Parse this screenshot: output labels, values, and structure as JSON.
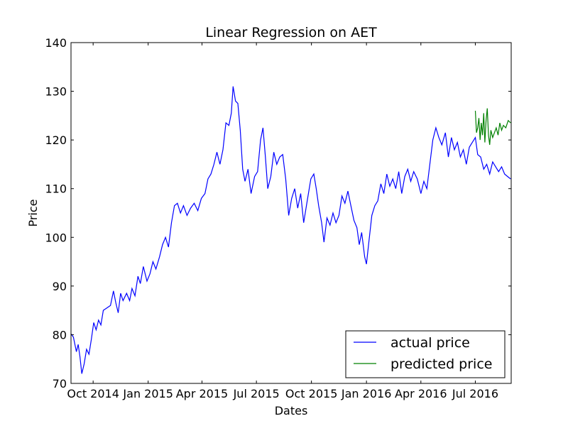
{
  "chart_data": {
    "type": "line",
    "title": "Linear Regression on AET",
    "xlabel": "Dates",
    "ylabel": "Price",
    "ylim": [
      70,
      140
    ],
    "xlim": [
      "2014-08-25",
      "2016-08-30"
    ],
    "yticks": [
      70,
      80,
      90,
      100,
      110,
      120,
      130,
      140
    ],
    "xticks": [
      {
        "date": "2014-10-01",
        "label": "Oct 2014"
      },
      {
        "date": "2015-01-01",
        "label": "Jan 2015"
      },
      {
        "date": "2015-04-01",
        "label": "Apr 2015"
      },
      {
        "date": "2015-07-01",
        "label": "Jul 2015"
      },
      {
        "date": "2015-10-01",
        "label": "Oct 2015"
      },
      {
        "date": "2016-01-01",
        "label": "Jan 2016"
      },
      {
        "date": "2016-04-01",
        "label": "Apr 2016"
      },
      {
        "date": "2016-07-01",
        "label": "Jul 2016"
      }
    ],
    "legend_position": "lower-right",
    "grid": false,
    "series": [
      {
        "name": "actual price",
        "color": "#0000ff",
        "points": [
          [
            "2014-08-25",
            80.2
          ],
          [
            "2014-08-29",
            79.5
          ],
          [
            "2014-09-03",
            76.5
          ],
          [
            "2014-09-06",
            78.0
          ],
          [
            "2014-09-09",
            75.5
          ],
          [
            "2014-09-12",
            72.0
          ],
          [
            "2014-09-16",
            74.0
          ],
          [
            "2014-09-20",
            77.0
          ],
          [
            "2014-09-24",
            76.0
          ],
          [
            "2014-09-28",
            79.0
          ],
          [
            "2014-10-02",
            82.5
          ],
          [
            "2014-10-06",
            81.0
          ],
          [
            "2014-10-10",
            83.0
          ],
          [
            "2014-10-14",
            82.0
          ],
          [
            "2014-10-18",
            85.0
          ],
          [
            "2014-10-24",
            85.5
          ],
          [
            "2014-10-30",
            86.0
          ],
          [
            "2014-11-04",
            89.0
          ],
          [
            "2014-11-08",
            86.5
          ],
          [
            "2014-11-12",
            84.5
          ],
          [
            "2014-11-16",
            88.5
          ],
          [
            "2014-11-20",
            87.0
          ],
          [
            "2014-11-26",
            88.5
          ],
          [
            "2014-12-01",
            87.0
          ],
          [
            "2014-12-05",
            89.5
          ],
          [
            "2014-12-10",
            88.0
          ],
          [
            "2014-12-15",
            92.0
          ],
          [
            "2014-12-19",
            90.5
          ],
          [
            "2014-12-24",
            94.0
          ],
          [
            "2014-12-30",
            91.0
          ],
          [
            "2015-01-04",
            92.5
          ],
          [
            "2015-01-09",
            95.0
          ],
          [
            "2015-01-14",
            93.5
          ],
          [
            "2015-01-20",
            96.0
          ],
          [
            "2015-01-25",
            98.5
          ],
          [
            "2015-01-30",
            100.0
          ],
          [
            "2015-02-04",
            98.0
          ],
          [
            "2015-02-09",
            103.0
          ],
          [
            "2015-02-14",
            106.5
          ],
          [
            "2015-02-19",
            107.0
          ],
          [
            "2015-02-24",
            105.0
          ],
          [
            "2015-03-01",
            106.5
          ],
          [
            "2015-03-07",
            104.5
          ],
          [
            "2015-03-13",
            106.0
          ],
          [
            "2015-03-19",
            107.0
          ],
          [
            "2015-03-25",
            105.5
          ],
          [
            "2015-03-31",
            108.0
          ],
          [
            "2015-04-06",
            109.0
          ],
          [
            "2015-04-11",
            112.0
          ],
          [
            "2015-04-16",
            113.0
          ],
          [
            "2015-04-21",
            115.0
          ],
          [
            "2015-04-26",
            117.5
          ],
          [
            "2015-05-01",
            115.0
          ],
          [
            "2015-05-06",
            118.0
          ],
          [
            "2015-05-11",
            123.5
          ],
          [
            "2015-05-16",
            123.0
          ],
          [
            "2015-05-20",
            125.5
          ],
          [
            "2015-05-23",
            131.0
          ],
          [
            "2015-05-27",
            128.0
          ],
          [
            "2015-05-31",
            127.5
          ],
          [
            "2015-06-04",
            122.0
          ],
          [
            "2015-06-08",
            114.0
          ],
          [
            "2015-06-12",
            111.5
          ],
          [
            "2015-06-17",
            114.0
          ],
          [
            "2015-06-22",
            109.0
          ],
          [
            "2015-06-28",
            112.5
          ],
          [
            "2015-07-03",
            113.5
          ],
          [
            "2015-07-08",
            120.0
          ],
          [
            "2015-07-12",
            122.5
          ],
          [
            "2015-07-16",
            116.5
          ],
          [
            "2015-07-20",
            110.0
          ],
          [
            "2015-07-25",
            112.5
          ],
          [
            "2015-07-30",
            117.5
          ],
          [
            "2015-08-04",
            115.0
          ],
          [
            "2015-08-09",
            116.5
          ],
          [
            "2015-08-14",
            117.0
          ],
          [
            "2015-08-19",
            112.0
          ],
          [
            "2015-08-24",
            104.5
          ],
          [
            "2015-08-29",
            108.0
          ],
          [
            "2015-09-03",
            110.0
          ],
          [
            "2015-09-08",
            106.0
          ],
          [
            "2015-09-13",
            109.0
          ],
          [
            "2015-09-18",
            103.0
          ],
          [
            "2015-09-24",
            107.5
          ],
          [
            "2015-09-30",
            112.0
          ],
          [
            "2015-10-05",
            113.0
          ],
          [
            "2015-10-09",
            110.0
          ],
          [
            "2015-10-13",
            106.5
          ],
          [
            "2015-10-18",
            103.0
          ],
          [
            "2015-10-22",
            99.0
          ],
          [
            "2015-10-27",
            104.0
          ],
          [
            "2015-11-01",
            102.5
          ],
          [
            "2015-11-06",
            105.0
          ],
          [
            "2015-11-11",
            103.0
          ],
          [
            "2015-11-16",
            104.5
          ],
          [
            "2015-11-21",
            108.5
          ],
          [
            "2015-11-26",
            107.0
          ],
          [
            "2015-12-01",
            109.5
          ],
          [
            "2015-12-06",
            106.5
          ],
          [
            "2015-12-11",
            103.5
          ],
          [
            "2015-12-16",
            102.0
          ],
          [
            "2015-12-20",
            98.5
          ],
          [
            "2015-12-24",
            101.0
          ],
          [
            "2015-12-29",
            96.0
          ],
          [
            "2016-01-01",
            94.5
          ],
          [
            "2016-01-05",
            99.0
          ],
          [
            "2016-01-10",
            104.5
          ],
          [
            "2016-01-15",
            106.5
          ],
          [
            "2016-01-20",
            107.5
          ],
          [
            "2016-01-25",
            111.0
          ],
          [
            "2016-01-30",
            109.0
          ],
          [
            "2016-02-04",
            113.0
          ],
          [
            "2016-02-09",
            110.5
          ],
          [
            "2016-02-14",
            112.0
          ],
          [
            "2016-02-19",
            110.0
          ],
          [
            "2016-02-24",
            113.5
          ],
          [
            "2016-02-29",
            109.0
          ],
          [
            "2016-03-05",
            112.5
          ],
          [
            "2016-03-10",
            114.0
          ],
          [
            "2016-03-15",
            111.5
          ],
          [
            "2016-03-20",
            113.5
          ],
          [
            "2016-03-26",
            112.0
          ],
          [
            "2016-04-01",
            109.0
          ],
          [
            "2016-04-06",
            111.5
          ],
          [
            "2016-04-11",
            110.0
          ],
          [
            "2016-04-16",
            115.0
          ],
          [
            "2016-04-21",
            120.0
          ],
          [
            "2016-04-26",
            122.5
          ],
          [
            "2016-05-01",
            120.5
          ],
          [
            "2016-05-06",
            119.0
          ],
          [
            "2016-05-12",
            121.5
          ],
          [
            "2016-05-17",
            116.5
          ],
          [
            "2016-05-22",
            120.5
          ],
          [
            "2016-05-27",
            118.0
          ],
          [
            "2016-06-01",
            119.5
          ],
          [
            "2016-06-06",
            116.5
          ],
          [
            "2016-06-11",
            118.0
          ],
          [
            "2016-06-16",
            115.0
          ],
          [
            "2016-06-21",
            118.5
          ],
          [
            "2016-06-26",
            119.5
          ],
          [
            "2016-07-01",
            120.5
          ],
          [
            "2016-07-05",
            117.0
          ],
          [
            "2016-07-10",
            116.5
          ],
          [
            "2016-07-15",
            114.0
          ],
          [
            "2016-07-20",
            115.0
          ],
          [
            "2016-07-25",
            113.0
          ],
          [
            "2016-07-30",
            115.5
          ],
          [
            "2016-08-04",
            114.5
          ],
          [
            "2016-08-09",
            113.5
          ],
          [
            "2016-08-14",
            114.5
          ],
          [
            "2016-08-19",
            113.0
          ],
          [
            "2016-08-24",
            112.5
          ],
          [
            "2016-08-29",
            112.0
          ]
        ]
      },
      {
        "name": "predicted price",
        "color": "#008000",
        "points": [
          [
            "2016-07-01",
            126.0
          ],
          [
            "2016-07-03",
            121.5
          ],
          [
            "2016-07-05",
            122.5
          ],
          [
            "2016-07-07",
            124.5
          ],
          [
            "2016-07-09",
            120.0
          ],
          [
            "2016-07-11",
            123.5
          ],
          [
            "2016-07-13",
            121.0
          ],
          [
            "2016-07-15",
            125.5
          ],
          [
            "2016-07-17",
            119.5
          ],
          [
            "2016-07-19",
            124.0
          ],
          [
            "2016-07-21",
            126.5
          ],
          [
            "2016-07-23",
            121.0
          ],
          [
            "2016-07-25",
            119.0
          ],
          [
            "2016-07-27",
            122.0
          ],
          [
            "2016-07-30",
            120.5
          ],
          [
            "2016-08-02",
            121.5
          ],
          [
            "2016-08-05",
            122.5
          ],
          [
            "2016-08-08",
            121.0
          ],
          [
            "2016-08-11",
            123.5
          ],
          [
            "2016-08-14",
            122.0
          ],
          [
            "2016-08-17",
            123.0
          ],
          [
            "2016-08-21",
            122.5
          ],
          [
            "2016-08-25",
            124.0
          ],
          [
            "2016-08-29",
            123.5
          ]
        ]
      }
    ]
  }
}
